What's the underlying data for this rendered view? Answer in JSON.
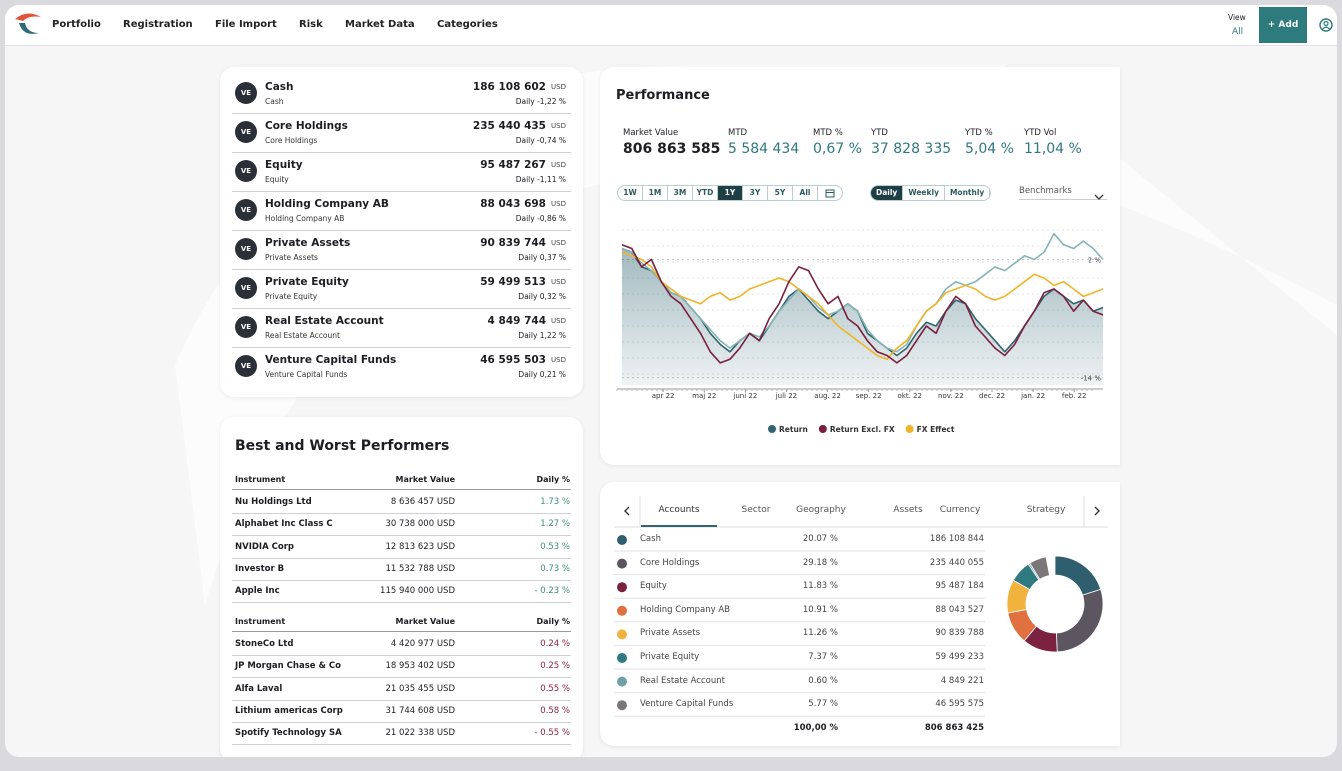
{
  "nav": {
    "items": [
      "Portfolio",
      "Registration",
      "File Import",
      "Risk",
      "Market Data",
      "Categories"
    ],
    "view_label": "View",
    "view_value": "All",
    "add": "+ Add"
  },
  "accounts": [
    {
      "badge": "VE",
      "name": "Cash",
      "sub": "Cash",
      "value": "186 108 602",
      "unit": "USD",
      "daily": "Daily -1,22 %"
    },
    {
      "badge": "VE",
      "name": "Core Holdings",
      "sub": "Core Holdings",
      "value": "235 440 435",
      "unit": "USD",
      "daily": "Daily -0,74 %"
    },
    {
      "badge": "VE",
      "name": "Equity",
      "sub": "Equity",
      "value": "95 487 267",
      "unit": "USD",
      "daily": "Daily -1,11 %"
    },
    {
      "badge": "VE",
      "name": "Holding Company AB",
      "sub": "Holding Company AB",
      "value": "88 043 698",
      "unit": "USD",
      "daily": "Daily -0,86 %"
    },
    {
      "badge": "VE",
      "name": "Private Assets",
      "sub": "Private Assets",
      "value": "90 839 744",
      "unit": "USD",
      "daily": "Daily 0,37 %"
    },
    {
      "badge": "VE",
      "name": "Private Equity",
      "sub": "Private Equity",
      "value": "59 499 513",
      "unit": "USD",
      "daily": "Daily 0,32 %"
    },
    {
      "badge": "VE",
      "name": "Real Estate Account",
      "sub": "Real Estate Account",
      "value": "4 849 744",
      "unit": "USD",
      "daily": "Daily 1,22 %"
    },
    {
      "badge": "VE",
      "name": "Venture Capital Funds",
      "sub": "Venture Capital Funds",
      "value": "46 595 503",
      "unit": "USD",
      "daily": "Daily 0,21 %"
    }
  ],
  "performers": {
    "title": "Best and Worst Performers",
    "tables": [
      {
        "header": [
          "Instrument",
          "Market Value",
          "Daily %"
        ],
        "tone": "#3d8c7c",
        "rows": [
          [
            "Nu Holdings Ltd",
            "8 636 457 USD",
            "1.73 %"
          ],
          [
            "Alphabet Inc Class C",
            "30 738 000 USD",
            "1.27 %"
          ],
          [
            "NVIDIA Corp",
            "12 813 623 USD",
            "0.53 %"
          ],
          [
            "Investor B",
            "11 532 788 USD",
            "0.73 %"
          ],
          [
            "Apple Inc",
            "115 940 000 USD",
            "- 0.23 %"
          ]
        ]
      },
      {
        "header": [
          "Instrument",
          "Market Value",
          "Daily %"
        ],
        "tone": "#8a2442",
        "rows": [
          [
            "StoneCo Ltd",
            "4 420 977 USD",
            "0.24 %"
          ],
          [
            "JP Morgan Chase & Co",
            "18 953 402 USD",
            "0.25 %"
          ],
          [
            "Alfa Laval",
            "21 035 455 USD",
            "0.55 %"
          ],
          [
            "Lithium americas Corp",
            "31 744 608 USD",
            "0.58 %"
          ],
          [
            "Spotify Technology SA",
            "21 022 338 USD",
            "- 0.55 %"
          ]
        ]
      }
    ]
  },
  "performance": {
    "title": "Performance",
    "metrics": [
      {
        "label": "Market Value",
        "value": "806 863 585"
      },
      {
        "label": "MTD",
        "value": "5 584 434"
      },
      {
        "label": "MTD %",
        "value": "0,67 %"
      },
      {
        "label": "YTD",
        "value": "37 828 335"
      },
      {
        "label": "YTD %",
        "value": "5,04 %"
      },
      {
        "label": "YTD Vol",
        "value": "11,04 %"
      }
    ],
    "ranges": [
      "1W",
      "1M",
      "3M",
      "YTD",
      "1Y",
      "3Y",
      "5Y",
      "All"
    ],
    "active_range": "1Y",
    "frequencies": [
      "Daily",
      "Weekly",
      "Monthly"
    ],
    "active_frequency": "Daily",
    "benchmarks": "Benchmarks",
    "chart": {
      "type": "line",
      "x_labels": [
        "apr 22",
        "maj 22",
        "juni 22",
        "juli 22",
        "aug. 22",
        "sep. 22",
        "okt. 22",
        "nov. 22",
        "dec. 22",
        "jan. 22",
        "feb. 22"
      ],
      "ylim": [
        -15,
        6
      ],
      "yticks": [
        {
          "value": 2,
          "label": "2 %"
        },
        {
          "value": -14,
          "label": "-14 %"
        }
      ],
      "grid": true,
      "series": [
        {
          "name": "Return",
          "color": "#2f6470",
          "values": [
            3.5,
            3,
            1,
            0.5,
            -1,
            -2.5,
            -3,
            -4.5,
            -6,
            -8,
            -9.5,
            -10.5,
            -9,
            -8,
            -9,
            -7,
            -5,
            -3,
            -2,
            -3.5,
            -5,
            -6,
            -5,
            -4,
            -5,
            -8,
            -9,
            -10,
            -11,
            -10,
            -8,
            -6.5,
            -7,
            -5,
            -3.5,
            -4,
            -6,
            -7.5,
            -9,
            -10.5,
            -9,
            -7,
            -5,
            -3,
            -2,
            -3,
            -4,
            -3.5,
            -5,
            -4.5
          ]
        },
        {
          "name": "Return Excl. FX",
          "color": "#7a1f3d",
          "values": [
            4,
            3.5,
            1,
            2,
            -1,
            -3,
            -4,
            -6,
            -8,
            -10.5,
            -12,
            -11.5,
            -10,
            -8,
            -9,
            -6,
            -4,
            -1,
            1,
            0.5,
            -2,
            -4,
            -3,
            -6,
            -7,
            -9,
            -10.5,
            -11,
            -12,
            -11,
            -9,
            -7,
            -8,
            -5,
            -3,
            -4,
            -7,
            -8.5,
            -10,
            -11,
            -9.5,
            -7,
            -5,
            -2.5,
            -2,
            -3,
            -5,
            -3.5,
            -5,
            -5.5
          ]
        },
        {
          "name": "FX Effect",
          "color": "#f0b429",
          "values": [
            3,
            2.5,
            2,
            1,
            -1,
            -2,
            -3,
            -3.5,
            -4,
            -3,
            -2.5,
            -3.5,
            -3,
            -2,
            -1.5,
            -1,
            -0.5,
            -1,
            -2,
            -3,
            -4,
            -5.5,
            -7,
            -8,
            -9,
            -10,
            -11,
            -11.5,
            -10,
            -9,
            -7,
            -5,
            -4,
            -2.5,
            -2,
            -1.5,
            -2,
            -3,
            -3.5,
            -3,
            -2,
            -1,
            0,
            -0.5,
            -1.5,
            -1,
            -2,
            -3,
            -2.5,
            -2
          ]
        },
        {
          "color": "#86b5b5",
          "values": [
            3.5,
            3,
            1.5,
            0.5,
            -1,
            -2.5,
            -3,
            -4.5,
            -6,
            -7.5,
            -9,
            -10,
            -9,
            -8,
            -8.5,
            -7,
            -5,
            -3.5,
            -2,
            -3,
            -4.5,
            -5.5,
            -5,
            -4,
            -5,
            -7.5,
            -9,
            -10,
            -10.5,
            -9.5,
            -7,
            -5,
            -4,
            -2,
            -1,
            -1.5,
            -1,
            0,
            1,
            0.5,
            1.5,
            2.5,
            2,
            3,
            5.5,
            4,
            3.5,
            4.5,
            3.5,
            2
          ]
        }
      ]
    }
  },
  "allocation": {
    "tabs": [
      "Accounts",
      "Sector",
      "Geography",
      "Assets",
      "Currency",
      "Strategy"
    ],
    "active_tab": "Accounts",
    "rows": [
      {
        "name": "Cash",
        "color": "#2f5f6e",
        "share": 20.07,
        "share_label": "20.07 %",
        "value": "186 108 844"
      },
      {
        "name": "Core Holdings",
        "color": "#5b5660",
        "share": 29.18,
        "share_label": "29.18 %",
        "value": "235 440 055"
      },
      {
        "name": "Equity",
        "color": "#7a2240",
        "share": 11.83,
        "share_label": "11.83 %",
        "value": "95 487 184"
      },
      {
        "name": "Holding Company AB",
        "color": "#e0703f",
        "share": 10.91,
        "share_label": "10.91 %",
        "value": "88 043 527"
      },
      {
        "name": "Private Assets",
        "color": "#f2b23e",
        "share": 11.26,
        "share_label": "11.26 %",
        "value": "90 839 788"
      },
      {
        "name": "Private Equity",
        "color": "#2f7a80",
        "share": 7.37,
        "share_label": "7.37 %",
        "value": "59 499 233"
      },
      {
        "name": "Real Estate Account",
        "color": "#6fa0a8",
        "share": 0.6,
        "share_label": "0.60 %",
        "value": "4 849 221"
      },
      {
        "name": "Venture Capital Funds",
        "color": "#7b7779",
        "share": 5.77,
        "share_label": "5.77 %",
        "value": "46 595 575"
      }
    ],
    "total_share": "100,00 %",
    "total_value": "806 863 425"
  }
}
